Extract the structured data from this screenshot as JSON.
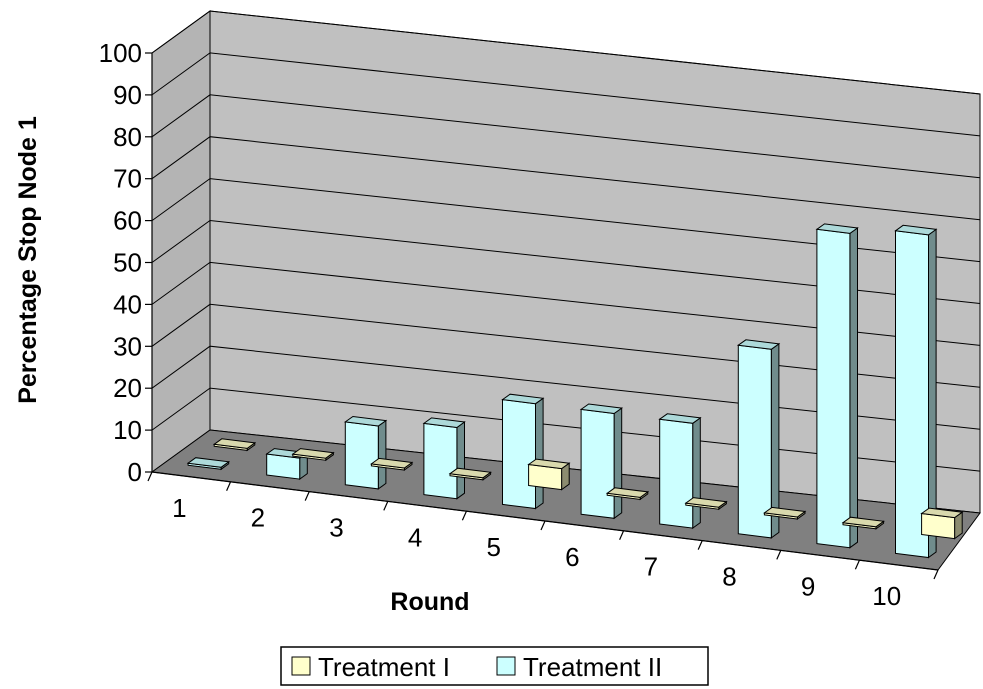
{
  "chart_data": {
    "type": "bar",
    "style": "3d-clustered-column",
    "title": "",
    "xlabel": "Round",
    "ylabel": "Percentage Stop Node 1",
    "ylim": [
      0,
      100
    ],
    "yticks": [
      0,
      10,
      20,
      30,
      40,
      50,
      60,
      70,
      80,
      90,
      100
    ],
    "categories": [
      "1",
      "2",
      "3",
      "4",
      "5",
      "6",
      "7",
      "8",
      "9",
      "10"
    ],
    "series": [
      {
        "name": "Treatment I",
        "color": "#ffffcc",
        "values": [
          0,
          0,
          0,
          0,
          5,
          0,
          0,
          0,
          0,
          5
        ]
      },
      {
        "name": "Treatment II",
        "color": "#ccffff",
        "values": [
          0,
          5,
          15,
          17,
          25,
          25,
          25,
          45,
          75,
          77
        ]
      }
    ],
    "grid": true,
    "legend_position": "bottom",
    "wall_color": "#c0c0c0",
    "floor_color": "#808080"
  }
}
